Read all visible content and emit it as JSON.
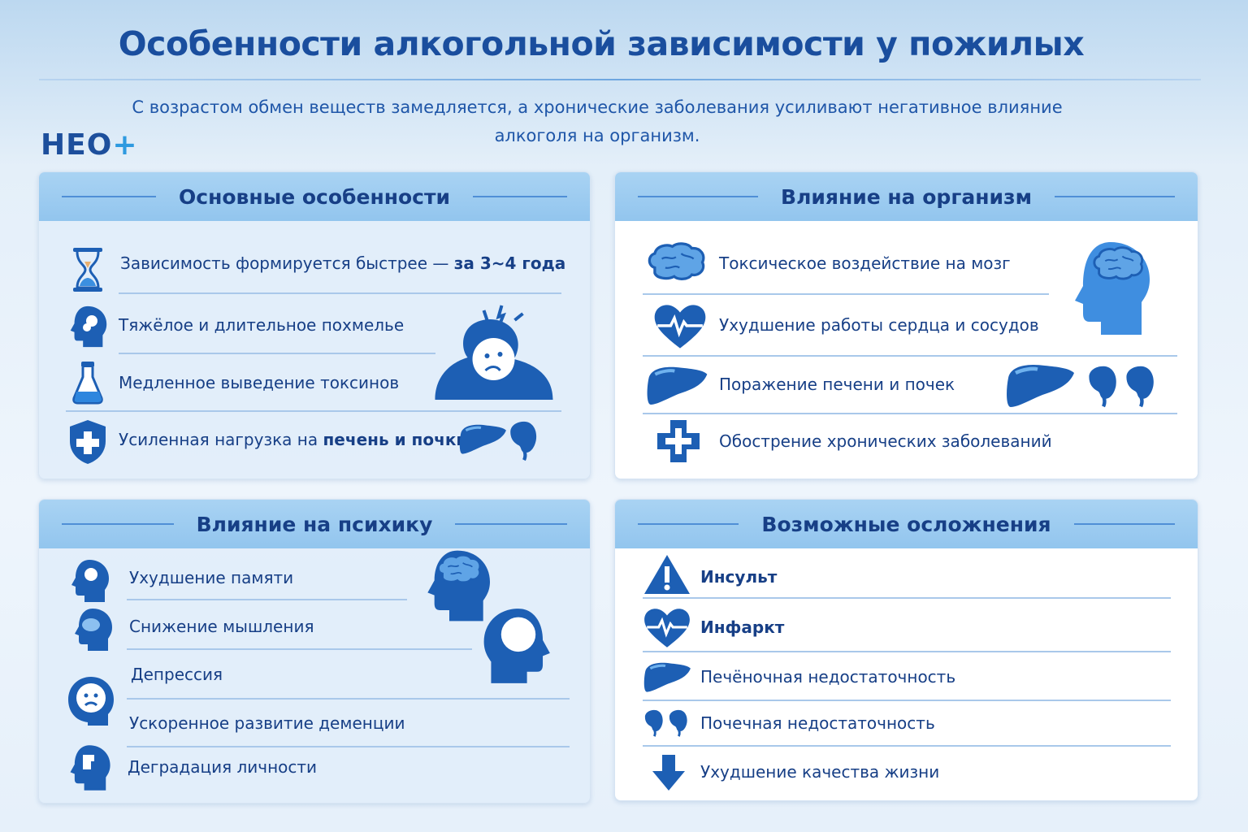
{
  "title": "Особенности алкогольной зависимости у пожилых",
  "subtitle": "С возрастом обмен веществ замедляется, а хронические заболевания усиливают негативное влияние алкоголя на организм.",
  "logo": {
    "text": "НЕО",
    "plus": "+"
  },
  "colors": {
    "primary": "#1d5fb4",
    "heading": "#173f86",
    "header_band": "#9fcdf0",
    "accent": "#2e9ae0"
  },
  "panels": [
    {
      "title": "Основные особенности",
      "items": [
        {
          "icon": "hourglass-icon",
          "text": "Зависимость формируется быстрее — ",
          "bold": "за 3~4 года"
        },
        {
          "icon": "head-fog-icon",
          "text": "Тяжёлое и длительное похмелье",
          "bold": ""
        },
        {
          "icon": "flask-icon",
          "text": "Медленное выведение токсинов",
          "bold": ""
        },
        {
          "icon": "shield-cross-icon",
          "text": "Усиленная нагрузка на ",
          "bold": "печень и почки"
        }
      ]
    },
    {
      "title": "Влияние на организм",
      "items": [
        {
          "icon": "brain-icon",
          "text": "Токсическое воздействие на мозг"
        },
        {
          "icon": "heart-pulse-icon",
          "text": "Ухудшение работы сердца и сосудов"
        },
        {
          "icon": "liver-icon",
          "text": "Поражение печени и почек"
        },
        {
          "icon": "medical-cross-icon",
          "text": "Обострение хронических заболеваний"
        }
      ]
    },
    {
      "title": "Влияние на психику",
      "items": [
        {
          "icon": "head-memory-icon",
          "text": "Ухудшение памяти"
        },
        {
          "icon": "head-cloud-icon",
          "text": "Снижение мышления"
        },
        {
          "icon": "sad-face-icon",
          "text": "Депрессия"
        },
        {
          "icon": "",
          "text": "Ускоренное развитие деменции"
        },
        {
          "icon": "head-puzzle-icon",
          "text": "Деградация личности"
        }
      ]
    },
    {
      "title": "Возможные осложнения",
      "items": [
        {
          "icon": "warning-icon",
          "text": "Инсульт",
          "bold": true
        },
        {
          "icon": "heart-pulse-icon",
          "text": "Инфаркт",
          "bold": true
        },
        {
          "icon": "liver-icon",
          "text": "Печёночная недостаточность",
          "bold": false
        },
        {
          "icon": "kidneys-icon",
          "text": "Почечная недостаточность",
          "bold": false
        },
        {
          "icon": "arrow-down-icon",
          "text": "Ухудшение качества жизни",
          "bold": false
        }
      ]
    }
  ]
}
